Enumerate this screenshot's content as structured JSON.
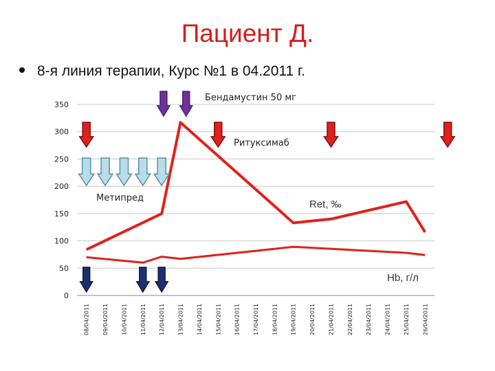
{
  "slide": {
    "title": "Пациент Д.",
    "bullet": "8-я линия терапии, Курс №1 в 04.2011 г."
  },
  "chart_data": {
    "type": "line",
    "ylim": [
      0,
      350
    ],
    "yticks": [
      0,
      50,
      100,
      150,
      200,
      250,
      300,
      350
    ],
    "grid": true,
    "categories": [
      "08/04/2011",
      "09/04/2011",
      "10/04/2011",
      "11/04/2011",
      "12/04/2011",
      "13/04/2011",
      "14/04/2011",
      "15/04/2011",
      "16/04/2011",
      "17/04/2011",
      "18/04/2011",
      "19/04/2011",
      "20/04/2011",
      "21/04/2011",
      "22/04/2011",
      "23/04/2011",
      "24/04/2011",
      "25/04/2011",
      "26/04/2011"
    ],
    "series": [
      {
        "name": "Ret, ‰",
        "color": "#e0211d",
        "points": [
          [
            0,
            84
          ],
          [
            4,
            150
          ],
          [
            5,
            317
          ],
          [
            11,
            133
          ],
          [
            13,
            140
          ],
          [
            17,
            172
          ],
          [
            18,
            116
          ]
        ]
      },
      {
        "name": "Hb, г/л",
        "color": "#e0211d",
        "points": [
          [
            0,
            70
          ],
          [
            3,
            60
          ],
          [
            4,
            71
          ],
          [
            5,
            67
          ],
          [
            11,
            89
          ],
          [
            17,
            78
          ],
          [
            18,
            74
          ]
        ]
      }
    ],
    "annotations": [
      {
        "text": "Бендамустин 50 мг",
        "marker_color": "#7030a0",
        "days": [
          4.1,
          5.3
        ]
      },
      {
        "text": "Ритуксимаб",
        "marker_color": "#e0211d",
        "days": [
          0,
          7,
          13,
          19.2
        ]
      },
      {
        "text": "Метипред",
        "marker_color": "#b7dde8",
        "days": [
          0,
          1,
          2,
          3,
          4
        ]
      },
      {
        "text": "",
        "marker_color": "#1f2f6e",
        "days": [
          0,
          3,
          4
        ]
      }
    ]
  }
}
